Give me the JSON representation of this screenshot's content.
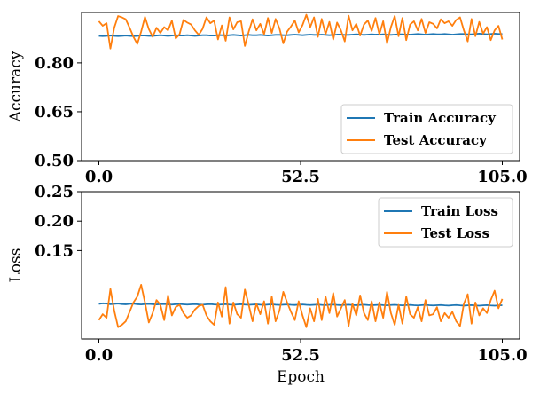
{
  "chart_data": [
    {
      "type": "line",
      "title": "",
      "xlabel": "",
      "ylabel": "Accuracy",
      "xlim": [
        -4.5,
        109.5
      ],
      "ylim": [
        0.5,
        0.955
      ],
      "xticks": [
        0.0,
        52.5,
        105.0
      ],
      "xtick_labels": [
        "0.0",
        "52.5",
        "105.0"
      ],
      "yticks": [
        0.5,
        0.65,
        0.8
      ],
      "ytick_labels": [
        "0.50",
        "0.65",
        "0.80"
      ],
      "legend_position": "lower-right",
      "grid": false,
      "series": [
        {
          "name": "Train Accuracy",
          "color": "#1f77b4",
          "x": [
            0,
            1,
            2,
            3,
            4,
            5,
            6,
            7,
            8,
            9,
            10,
            11,
            12,
            13,
            14,
            15,
            16,
            17,
            18,
            19,
            20,
            21,
            22,
            23,
            24,
            25,
            26,
            27,
            28,
            29,
            30,
            31,
            32,
            33,
            34,
            35,
            36,
            37,
            38,
            39,
            40,
            41,
            42,
            43,
            44,
            45,
            46,
            47,
            48,
            49,
            50,
            51,
            52,
            53,
            54,
            55,
            56,
            57,
            58,
            59,
            60,
            61,
            62,
            63,
            64,
            65,
            66,
            67,
            68,
            69,
            70,
            71,
            72,
            73,
            74,
            75,
            76,
            77,
            78,
            79,
            80,
            81,
            82,
            83,
            84,
            85,
            86,
            87,
            88,
            89,
            90,
            91,
            92,
            93,
            94,
            95,
            96,
            97,
            98,
            99,
            100,
            101,
            102,
            103,
            104,
            105
          ],
          "y": [
            0.883,
            0.882,
            0.883,
            0.884,
            0.883,
            0.882,
            0.883,
            0.884,
            0.883,
            0.882,
            0.883,
            0.884,
            0.884,
            0.883,
            0.883,
            0.884,
            0.885,
            0.884,
            0.883,
            0.884,
            0.885,
            0.884,
            0.884,
            0.885,
            0.884,
            0.883,
            0.884,
            0.885,
            0.885,
            0.884,
            0.884,
            0.885,
            0.885,
            0.884,
            0.885,
            0.886,
            0.885,
            0.884,
            0.885,
            0.886,
            0.885,
            0.885,
            0.886,
            0.885,
            0.884,
            0.885,
            0.886,
            0.886,
            0.885,
            0.885,
            0.886,
            0.887,
            0.886,
            0.885,
            0.886,
            0.887,
            0.886,
            0.886,
            0.887,
            0.886,
            0.885,
            0.886,
            0.887,
            0.887,
            0.886,
            0.886,
            0.887,
            0.888,
            0.887,
            0.886,
            0.887,
            0.888,
            0.887,
            0.887,
            0.888,
            0.887,
            0.886,
            0.887,
            0.888,
            0.888,
            0.887,
            0.887,
            0.888,
            0.889,
            0.888,
            0.887,
            0.888,
            0.889,
            0.888,
            0.888,
            0.889,
            0.888,
            0.887,
            0.888,
            0.889,
            0.889,
            0.888,
            0.888,
            0.889,
            0.89,
            0.889,
            0.888,
            0.889,
            0.89,
            0.889,
            0.889
          ]
        },
        {
          "name": "Test Accuracy",
          "color": "#ff7f0e",
          "x": [
            0,
            1,
            2,
            3,
            4,
            5,
            6,
            7,
            8,
            9,
            10,
            11,
            12,
            13,
            14,
            15,
            16,
            17,
            18,
            19,
            20,
            21,
            22,
            23,
            24,
            25,
            26,
            27,
            28,
            29,
            30,
            31,
            32,
            33,
            34,
            35,
            36,
            37,
            38,
            39,
            40,
            41,
            42,
            43,
            44,
            45,
            46,
            47,
            48,
            49,
            50,
            51,
            52,
            53,
            54,
            55,
            56,
            57,
            58,
            59,
            60,
            61,
            62,
            63,
            64,
            65,
            66,
            67,
            68,
            69,
            70,
            71,
            72,
            73,
            74,
            75,
            76,
            77,
            78,
            79,
            80,
            81,
            82,
            83,
            84,
            85,
            86,
            87,
            88,
            89,
            90,
            91,
            92,
            93,
            94,
            95,
            96,
            97,
            98,
            99,
            100,
            101,
            102,
            103,
            104,
            105
          ],
          "y": [
            0.928,
            0.914,
            0.922,
            0.844,
            0.908,
            0.944,
            0.94,
            0.934,
            0.908,
            0.88,
            0.858,
            0.896,
            0.941,
            0.904,
            0.88,
            0.908,
            0.892,
            0.91,
            0.9,
            0.93,
            0.875,
            0.888,
            0.932,
            0.924,
            0.918,
            0.9,
            0.886,
            0.905,
            0.94,
            0.922,
            0.93,
            0.872,
            0.915,
            0.868,
            0.94,
            0.903,
            0.925,
            0.928,
            0.852,
            0.896,
            0.934,
            0.9,
            0.92,
            0.888,
            0.938,
            0.892,
            0.935,
            0.906,
            0.86,
            0.896,
            0.912,
            0.93,
            0.894,
            0.916,
            0.948,
            0.91,
            0.94,
            0.88,
            0.935,
            0.888,
            0.926,
            0.872,
            0.924,
            0.9,
            0.866,
            0.945,
            0.9,
            0.92,
            0.884,
            0.918,
            0.93,
            0.898,
            0.938,
            0.888,
            0.928,
            0.86,
            0.91,
            0.944,
            0.882,
            0.938,
            0.87,
            0.918,
            0.928,
            0.9,
            0.935,
            0.892,
            0.925,
            0.92,
            0.906,
            0.934,
            0.922,
            0.928,
            0.914,
            0.932,
            0.94,
            0.9,
            0.866,
            0.935,
            0.882,
            0.926,
            0.89,
            0.91,
            0.87,
            0.9,
            0.914,
            0.872
          ]
        }
      ]
    },
    {
      "type": "line",
      "title": "",
      "xlabel": "Epoch",
      "ylabel": "Loss",
      "xlim": [
        -4.5,
        109.5
      ],
      "ylim": [
        0.0,
        0.25
      ],
      "xticks": [
        0.0,
        52.5,
        105.0
      ],
      "xtick_labels": [
        "0.0",
        "52.5",
        "105.0"
      ],
      "yticks": [
        0.15,
        0.2,
        0.25
      ],
      "ytick_labels": [
        "0.15",
        "0.20",
        "0.25"
      ],
      "legend_position": "upper-right",
      "grid": false,
      "series": [
        {
          "name": "Train Loss",
          "color": "#1f77b4",
          "x": [
            0,
            1,
            2,
            3,
            4,
            5,
            6,
            7,
            8,
            9,
            10,
            11,
            12,
            13,
            14,
            15,
            16,
            17,
            18,
            19,
            20,
            21,
            22,
            23,
            24,
            25,
            26,
            27,
            28,
            29,
            30,
            31,
            32,
            33,
            34,
            35,
            36,
            37,
            38,
            39,
            40,
            41,
            42,
            43,
            44,
            45,
            46,
            47,
            48,
            49,
            50,
            51,
            52,
            53,
            54,
            55,
            56,
            57,
            58,
            59,
            60,
            61,
            62,
            63,
            64,
            65,
            66,
            67,
            68,
            69,
            70,
            71,
            72,
            73,
            74,
            75,
            76,
            77,
            78,
            79,
            80,
            81,
            82,
            83,
            84,
            85,
            86,
            87,
            88,
            89,
            90,
            91,
            92,
            93,
            94,
            95,
            96,
            97,
            98,
            99,
            100,
            101,
            102,
            103,
            104,
            105
          ],
          "y": [
            0.0595,
            0.0605,
            0.06,
            0.059,
            0.0595,
            0.06,
            0.0592,
            0.0588,
            0.0595,
            0.0598,
            0.059,
            0.0585,
            0.0592,
            0.0596,
            0.059,
            0.0586,
            0.059,
            0.0594,
            0.0588,
            0.0584,
            0.059,
            0.0594,
            0.0588,
            0.0583,
            0.0588,
            0.0592,
            0.0586,
            0.0582,
            0.0588,
            0.0592,
            0.0586,
            0.0582,
            0.0586,
            0.059,
            0.0584,
            0.058,
            0.0586,
            0.059,
            0.0584,
            0.058,
            0.0584,
            0.0588,
            0.0582,
            0.0578,
            0.0584,
            0.0588,
            0.0582,
            0.0578,
            0.0582,
            0.0586,
            0.058,
            0.0577,
            0.0582,
            0.0586,
            0.058,
            0.0576,
            0.058,
            0.0584,
            0.0578,
            0.0575,
            0.058,
            0.0584,
            0.0578,
            0.0574,
            0.0578,
            0.0582,
            0.0576,
            0.0573,
            0.0578,
            0.0582,
            0.0576,
            0.0572,
            0.0576,
            0.058,
            0.0574,
            0.0571,
            0.0576,
            0.058,
            0.0574,
            0.057,
            0.0574,
            0.0578,
            0.0572,
            0.0569,
            0.0574,
            0.0578,
            0.0572,
            0.0568,
            0.0572,
            0.0576,
            0.057,
            0.0567,
            0.0572,
            0.0576,
            0.057,
            0.0566,
            0.057,
            0.0574,
            0.0568,
            0.0565,
            0.057,
            0.0574,
            0.0568,
            0.0565,
            0.0568,
            0.0572
          ]
        },
        {
          "name": "Test Loss",
          "color": "#ff7f0e",
          "x": [
            0,
            1,
            2,
            3,
            4,
            5,
            6,
            7,
            8,
            9,
            10,
            11,
            12,
            13,
            14,
            15,
            16,
            17,
            18,
            19,
            20,
            21,
            22,
            23,
            24,
            25,
            26,
            27,
            28,
            29,
            30,
            31,
            32,
            33,
            34,
            35,
            36,
            37,
            38,
            39,
            40,
            41,
            42,
            43,
            44,
            45,
            46,
            47,
            48,
            49,
            50,
            51,
            52,
            53,
            54,
            55,
            56,
            57,
            58,
            59,
            60,
            61,
            62,
            63,
            64,
            65,
            66,
            67,
            68,
            69,
            70,
            71,
            72,
            73,
            74,
            75,
            76,
            77,
            78,
            79,
            80,
            81,
            82,
            83,
            84,
            85,
            86,
            87,
            88,
            89,
            90,
            91,
            92,
            93,
            94,
            95,
            96,
            97,
            98,
            99,
            100,
            101,
            102,
            103,
            104,
            105
          ],
          "y": [
            0.032,
            0.042,
            0.036,
            0.085,
            0.048,
            0.02,
            0.024,
            0.03,
            0.046,
            0.062,
            0.072,
            0.092,
            0.062,
            0.028,
            0.044,
            0.066,
            0.058,
            0.032,
            0.074,
            0.04,
            0.054,
            0.058,
            0.044,
            0.036,
            0.04,
            0.05,
            0.056,
            0.058,
            0.04,
            0.03,
            0.024,
            0.062,
            0.038,
            0.088,
            0.026,
            0.062,
            0.042,
            0.036,
            0.084,
            0.058,
            0.03,
            0.06,
            0.042,
            0.064,
            0.026,
            0.072,
            0.03,
            0.048,
            0.08,
            0.062,
            0.046,
            0.032,
            0.064,
            0.04,
            0.02,
            0.052,
            0.03,
            0.068,
            0.032,
            0.072,
            0.044,
            0.078,
            0.038,
            0.052,
            0.066,
            0.022,
            0.06,
            0.04,
            0.074,
            0.044,
            0.032,
            0.064,
            0.03,
            0.062,
            0.036,
            0.08,
            0.044,
            0.024,
            0.058,
            0.026,
            0.072,
            0.042,
            0.036,
            0.054,
            0.03,
            0.066,
            0.04,
            0.042,
            0.054,
            0.03,
            0.044,
            0.036,
            0.046,
            0.03,
            0.022,
            0.06,
            0.076,
            0.026,
            0.062,
            0.04,
            0.052,
            0.044,
            0.066,
            0.082,
            0.052,
            0.068
          ]
        }
      ]
    }
  ]
}
